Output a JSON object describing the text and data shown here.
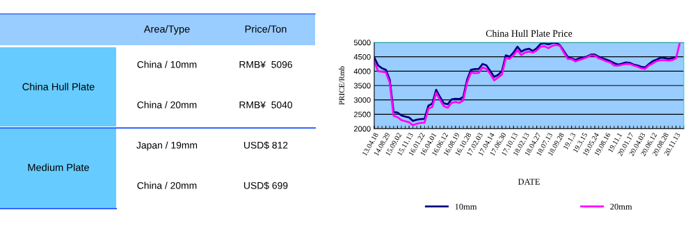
{
  "chart_data": [
    {
      "type": "other",
      "categories": [
        null,
        "Area/Type",
        "Price/Ton"
      ],
      "y_categories": [
        "China Hull Plate",
        "Medium Plate"
      ],
      "cell_labels": [
        [
          "China / 10mm",
          "RMB¥  5096"
        ],
        [
          "China / 20mm",
          "RMB¥  5040"
        ],
        [
          "Japan / 19mm",
          "USD$ 812"
        ],
        [
          "China / 20mm",
          "USD$ 699"
        ]
      ]
    },
    {
      "type": "line",
      "title": "China Hull Plate Price",
      "xlabel": "DATE",
      "ylabel": "PRICE/Rmb",
      "categories": [
        "13.04.18",
        null,
        null,
        "14.08.29",
        null,
        null,
        "15.09.02",
        null,
        null,
        "15.11.13",
        null,
        null,
        "16.01.22",
        null,
        null,
        "16.04.01",
        null,
        null,
        "16.06.12",
        null,
        null,
        "16.08.19",
        null,
        null,
        "16.10.28",
        null,
        null,
        "17.02.03",
        null,
        null,
        "17.04.14",
        null,
        null,
        "17.06.30",
        null,
        null,
        "17.10.13",
        null,
        null,
        "18.02.13",
        null,
        null,
        "18.04.27",
        null,
        null,
        "18.07.13",
        null,
        null,
        "18.09.28",
        null,
        null,
        "19.1.3",
        null,
        null,
        "19.3.15",
        null,
        null,
        "19.05.24",
        null,
        null,
        "19.08.16",
        null,
        null,
        "19.11.1",
        null,
        null,
        "20.01.17",
        null,
        null,
        "20.04.03",
        null,
        null,
        "20.06.12",
        null,
        null,
        "20.08.28",
        null,
        null,
        "20.11.13",
        null,
        null
      ],
      "series": [
        {
          "name": "10mm",
          "color": "#000080",
          "values": [
            4480,
            4200,
            4100,
            4050,
            3700,
            2580,
            2560,
            2460,
            2420,
            2390,
            2270,
            2310,
            2330,
            2340,
            2800,
            2870,
            3350,
            3100,
            2880,
            2850,
            3020,
            3040,
            3030,
            3100,
            3700,
            4050,
            4070,
            4080,
            4250,
            4200,
            4000,
            3800,
            3870,
            4000,
            4550,
            4500,
            4650,
            4850,
            4680,
            4750,
            4780,
            4700,
            4800,
            4950,
            4970,
            4930,
            4980,
            4990,
            4900,
            4700,
            4500,
            4450,
            4390,
            4450,
            4480,
            4510,
            4580,
            4580,
            4500,
            4450,
            4400,
            4350,
            4280,
            4230,
            4260,
            4300,
            4290,
            4230,
            4200,
            4150,
            4130,
            4250,
            4350,
            4400,
            4470,
            4460,
            4430,
            4450,
            4500,
            null,
            null
          ]
        },
        {
          "name": "20mm",
          "color": "#ff00ff",
          "values": [
            4330,
            4000,
            3980,
            3960,
            3600,
            2450,
            2400,
            2300,
            2260,
            2220,
            2120,
            2170,
            2200,
            2210,
            2700,
            2750,
            3250,
            3000,
            2780,
            2730,
            2900,
            2930,
            2900,
            2980,
            3600,
            3950,
            3930,
            3940,
            4130,
            4080,
            3900,
            3680,
            3780,
            3880,
            4450,
            4430,
            4550,
            4730,
            4560,
            4650,
            4680,
            4650,
            4720,
            4850,
            4870,
            4800,
            4880,
            4920,
            4880,
            4650,
            4430,
            4420,
            4340,
            4390,
            4430,
            4480,
            4550,
            4540,
            4450,
            4400,
            4340,
            4300,
            4200,
            4190,
            4220,
            4250,
            4250,
            4200,
            4160,
            4100,
            4080,
            4200,
            4270,
            4350,
            4380,
            4380,
            4370,
            4380,
            4450,
            5000,
            null
          ]
        }
      ],
      "ylim": [
        2000,
        5000
      ],
      "yticks": [
        2000,
        2500,
        3000,
        3500,
        4000,
        4500,
        5000
      ],
      "grid": "y",
      "legend": "bottom",
      "marker": "none",
      "line_style": "solid"
    }
  ]
}
